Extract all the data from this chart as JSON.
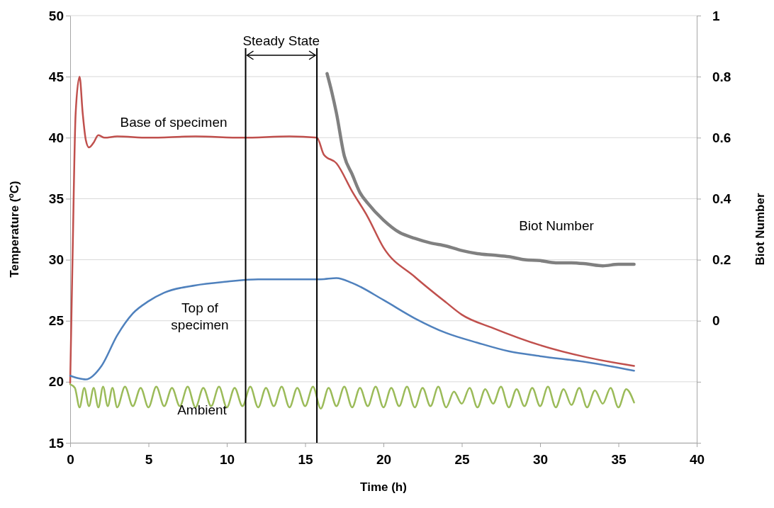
{
  "chart_data": {
    "type": "line",
    "xlabel": "Time (h)",
    "ylabel": "Temperature (ºC)",
    "y2label": "Biot Number",
    "xlim": [
      0,
      40
    ],
    "xticks": [
      0,
      5,
      10,
      15,
      20,
      25,
      30,
      35,
      40
    ],
    "ylim": [
      15,
      50
    ],
    "yticks": [
      15,
      20,
      25,
      30,
      35,
      40,
      45,
      50
    ],
    "y2lim": [
      -0.4,
      1
    ],
    "y2ticks": [
      {
        "value": -0.4,
        "label": null
      },
      {
        "value": -0.2,
        "label": null
      },
      0,
      0.2,
      0.4,
      0.6,
      0.8,
      1
    ],
    "grid": "y",
    "marker": "none",
    "line_style": "solid",
    "series": [
      {
        "name": "Base of specimen",
        "color": "#c0504d",
        "x": [
          0,
          0.15,
          0.35,
          0.6,
          0.8,
          1,
          1.2,
          1.5,
          1.8,
          2.2,
          3,
          5,
          8,
          11,
          14,
          15.75,
          16.2,
          17,
          18,
          19,
          20,
          22,
          24,
          25,
          27,
          30,
          33,
          36
        ],
        "values": [
          19.9,
          30,
          42,
          45,
          42,
          39.8,
          39.2,
          39.6,
          40.2,
          40,
          40.1,
          40,
          40.1,
          40,
          40.1,
          40,
          38.6,
          37.9,
          35.6,
          33.5,
          31,
          28.6,
          26.5,
          25.5,
          24.4,
          23,
          22,
          21.3
        ]
      },
      {
        "name": "Top of\nspecimen",
        "color": "#4f81bd",
        "x": [
          0,
          0.5,
          1,
          2,
          3,
          4,
          5,
          6,
          8,
          10,
          12,
          14,
          16,
          17,
          18,
          20,
          22,
          24,
          26,
          28,
          30,
          33,
          36
        ],
        "values": [
          20.5,
          20.3,
          20.2,
          21.3,
          23.8,
          25.6,
          26.6,
          27.3,
          27.9,
          28.2,
          28.4,
          28.4,
          28.4,
          28.5,
          28.1,
          26.7,
          25.2,
          24,
          23.2,
          22.5,
          22.1,
          21.6,
          20.9
        ]
      },
      {
        "name": "Ambient",
        "color": "#9bbb59",
        "x": [
          0,
          0.3,
          0.6,
          0.9,
          1.2,
          1.5,
          1.8,
          2.1,
          2.4,
          2.7,
          3,
          3.5,
          4,
          4.5,
          5,
          5.5,
          6,
          6.5,
          7,
          7.5,
          8,
          8.5,
          9,
          9.5,
          10,
          10.5,
          11,
          11.5,
          12,
          12.5,
          13,
          13.5,
          14,
          14.5,
          15,
          15.5,
          16,
          16.5,
          17,
          17.5,
          18,
          18.5,
          19,
          19.5,
          20,
          20.5,
          21,
          21.5,
          22,
          22.5,
          23,
          23.5,
          24,
          24.5,
          25,
          25.5,
          26,
          26.5,
          27,
          27.5,
          28,
          28.5,
          29,
          29.5,
          30,
          30.5,
          31,
          31.5,
          32,
          32.5,
          33,
          33.5,
          34,
          34.5,
          35,
          35.5,
          36
        ],
        "values": [
          19.8,
          19.5,
          17.9,
          19.5,
          18,
          19.5,
          17.9,
          19.6,
          18,
          19.5,
          17.9,
          19.6,
          18,
          19.5,
          17.9,
          19.6,
          18,
          19.5,
          18,
          19.6,
          17.9,
          19.5,
          18,
          19.6,
          17.9,
          19.5,
          18,
          19.6,
          17.9,
          19.5,
          18,
          19.6,
          17.9,
          19.5,
          18,
          19.6,
          17.8,
          19.5,
          18,
          19.6,
          17.9,
          19.5,
          18,
          19.6,
          17.9,
          19.5,
          18,
          19.6,
          17.9,
          19.5,
          18,
          19.6,
          17.9,
          19.2,
          18.2,
          19.5,
          17.9,
          19.4,
          18.2,
          19.6,
          17.9,
          19.4,
          18,
          19.5,
          18,
          19.6,
          17.9,
          19.4,
          18.1,
          19.5,
          17.9,
          19.3,
          18.2,
          19.5,
          17.9,
          19.4,
          18.3
        ]
      },
      {
        "name": "Biot Number",
        "color": "#808080",
        "axis": "y2",
        "x": [
          16.4,
          16.7,
          17,
          17.5,
          18,
          18.5,
          19,
          20,
          21,
          22,
          23,
          24,
          25,
          26,
          27,
          28,
          29,
          30,
          31,
          32,
          33,
          34,
          35,
          36
        ],
        "values": [
          0.81,
          0.75,
          0.68,
          0.54,
          0.48,
          0.42,
          0.385,
          0.33,
          0.29,
          0.27,
          0.255,
          0.245,
          0.23,
          0.22,
          0.215,
          0.21,
          0.2,
          0.197,
          0.19,
          0.19,
          0.186,
          0.18,
          0.185,
          0.185
        ]
      }
    ],
    "ref_lines": [
      {
        "axis": "x",
        "value": 11.2,
        "color": "#000000"
      },
      {
        "axis": "x",
        "value": 15.75,
        "color": "#000000"
      }
    ],
    "annotations": [
      "Steady State"
    ]
  }
}
